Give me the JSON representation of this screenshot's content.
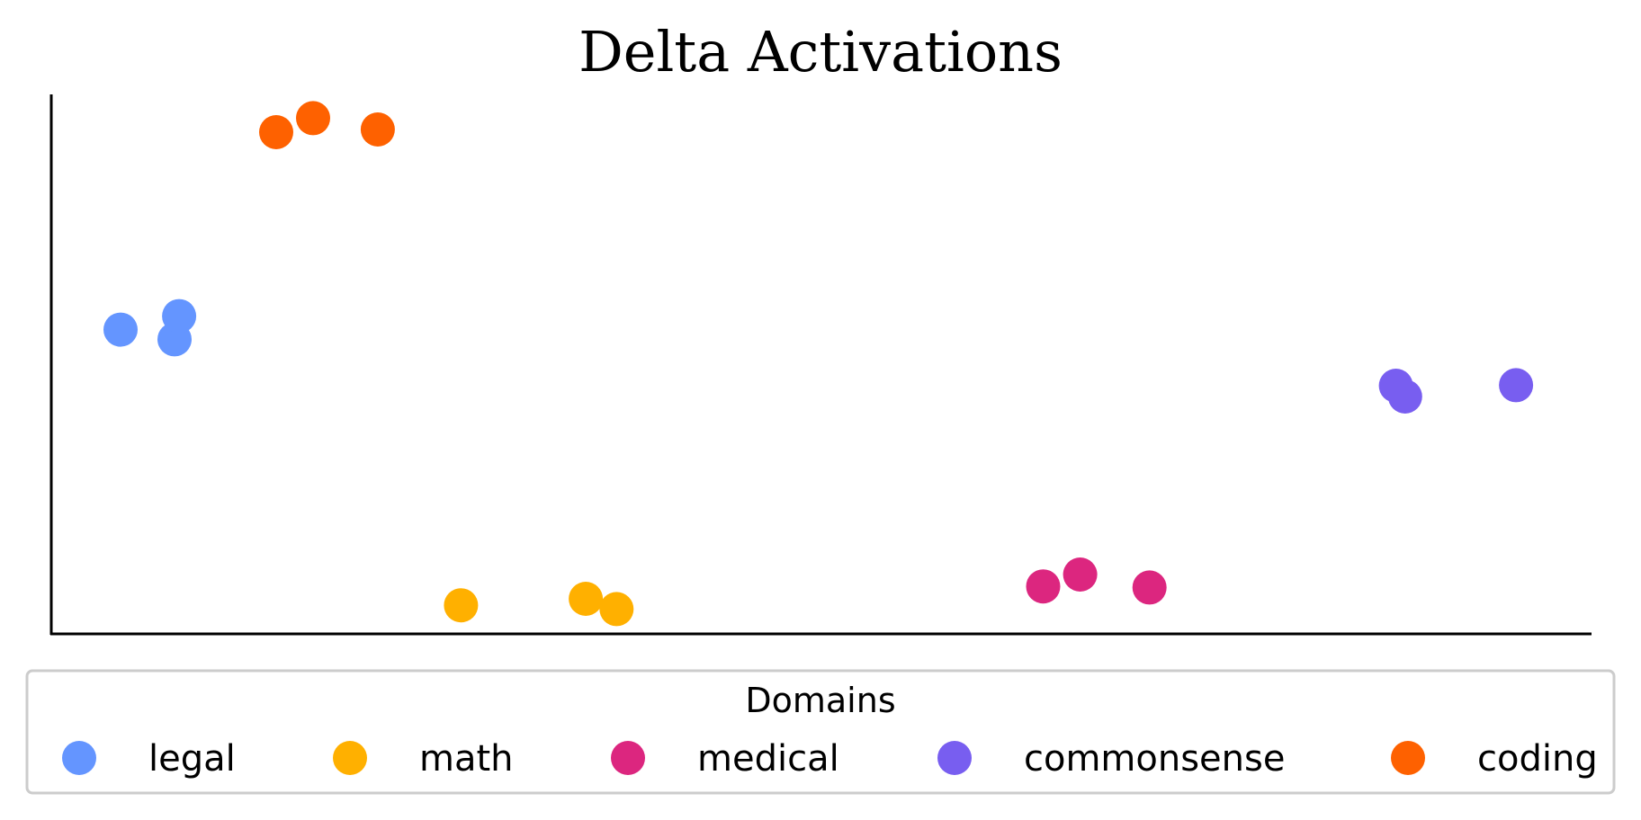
{
  "chart_data": {
    "type": "scatter",
    "title": "Delta Activations",
    "xlabel": "",
    "ylabel": "",
    "x_ticks": false,
    "y_ticks": false,
    "grid": false,
    "xlim": [
      0,
      100
    ],
    "ylim": [
      0,
      100
    ],
    "legend": {
      "title": "Domains",
      "placement": "bottom",
      "layout": "horizontal"
    },
    "series": [
      {
        "name": "legal",
        "color": "#6495ff",
        "points": [
          [
            4.5,
            56.4
          ],
          [
            8.0,
            54.6
          ],
          [
            8.3,
            58.9
          ]
        ]
      },
      {
        "name": "math",
        "color": "#ffb000",
        "points": [
          [
            26.6,
            5.3
          ],
          [
            34.7,
            6.5
          ],
          [
            36.7,
            4.6
          ]
        ]
      },
      {
        "name": "medical",
        "color": "#dc267f",
        "points": [
          [
            64.4,
            8.8
          ],
          [
            66.8,
            11.0
          ],
          [
            71.3,
            8.6
          ]
        ]
      },
      {
        "name": "commonsense",
        "color": "#785ef0",
        "points": [
          [
            87.3,
            46.0
          ],
          [
            87.9,
            44.0
          ],
          [
            95.1,
            46.1
          ]
        ]
      },
      {
        "name": "coding",
        "color": "#fe6100",
        "points": [
          [
            14.6,
            93.0
          ],
          [
            17.0,
            95.6
          ],
          [
            21.2,
            93.5
          ]
        ]
      }
    ]
  }
}
